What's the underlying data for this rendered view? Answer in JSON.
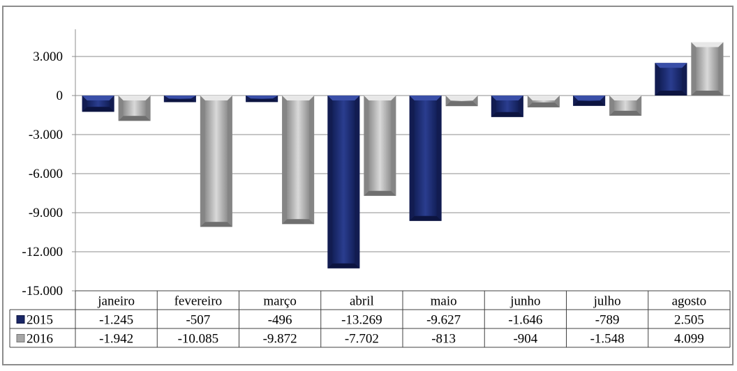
{
  "chart_data": {
    "type": "bar",
    "categories": [
      "janeiro",
      "fevereiro",
      "março",
      "abril",
      "maio",
      "junho",
      "julho",
      "agosto"
    ],
    "series": [
      {
        "name": "2015",
        "color": "#1f2d6e",
        "values": [
          -1245,
          -507,
          -496,
          -13269,
          -9627,
          -1646,
          -789,
          2505
        ]
      },
      {
        "name": "2016",
        "color": "#a6a6a6",
        "values": [
          -1942,
          -10085,
          -9872,
          -7702,
          -813,
          -904,
          -1548,
          4099
        ]
      }
    ],
    "value_labels": {
      "2015": [
        "-1.245",
        "-507",
        "-496",
        "-13.269",
        "-9.627",
        "-1.646",
        "-789",
        "2.505"
      ],
      "2016": [
        "-1.942",
        "-10.085",
        "-9.872",
        "-7.702",
        "-813",
        "-904",
        "-1.548",
        "4.099"
      ]
    },
    "y_ticks": [
      3000,
      0,
      -3000,
      -6000,
      -9000,
      -12000,
      -15000
    ],
    "y_tick_labels": [
      "3.000",
      "0",
      "-3.000",
      "-6.000",
      "-9.000",
      "-12.000",
      "-15.000"
    ],
    "ylim": [
      -15000,
      5000
    ],
    "grid": true,
    "legend": "data-table",
    "data_table": true
  }
}
